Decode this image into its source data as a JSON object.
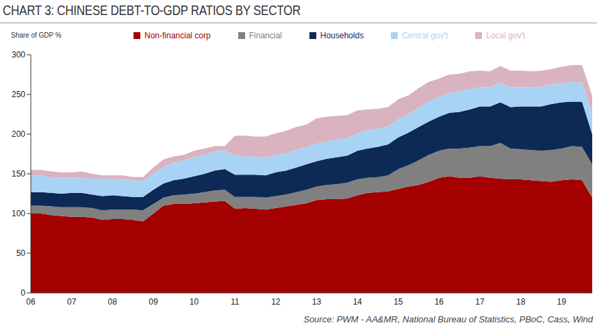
{
  "chart_data": {
    "type": "area",
    "title": "CHART 3: CHINESE DEBT-TO-GDP RATIOS BY SECTOR",
    "ylabel": "Share of GDP %",
    "note": "Source: PWM - AA&MR, National Bureau of Statistics, PBoC, Cass, Wind",
    "stacked": true,
    "legend": "top",
    "grid": false,
    "categories": [
      "06",
      null,
      null,
      null,
      "07",
      null,
      null,
      null,
      "08",
      null,
      null,
      null,
      "09",
      null,
      null,
      null,
      "10",
      null,
      null,
      null,
      "11",
      null,
      null,
      null,
      "12",
      null,
      null,
      null,
      "13",
      null,
      null,
      null,
      "14",
      null,
      null,
      null,
      "15",
      null,
      null,
      null,
      "16",
      null,
      null,
      null,
      "17",
      null,
      null,
      null,
      "18",
      null,
      null,
      null,
      "19",
      null,
      null,
      null
    ],
    "ylim": [
      0,
      300
    ],
    "yticks": [
      0,
      50,
      100,
      150,
      200,
      250,
      300
    ],
    "series": [
      {
        "name": "Non-financial corp",
        "color": "#a50000",
        "values": [
          100,
          100,
          98,
          97,
          96,
          96,
          95,
          92,
          93,
          93,
          92,
          90,
          100,
          110,
          112,
          112,
          113,
          114,
          115,
          116,
          106,
          107,
          106,
          105,
          107,
          109,
          111,
          113,
          117,
          118,
          118,
          119,
          123,
          126,
          127,
          128,
          131,
          134,
          136,
          140,
          145,
          147,
          145,
          145,
          147,
          145,
          144,
          143,
          143,
          142,
          141,
          140,
          142,
          143,
          142,
          120
        ]
      },
      {
        "name": "Financial",
        "color": "#808080",
        "values": [
          10,
          10,
          11,
          11,
          12,
          12,
          12,
          12,
          12,
          12,
          13,
          14,
          12,
          10,
          11,
          12,
          12,
          13,
          14,
          14,
          15,
          14,
          15,
          15,
          15,
          15,
          16,
          17,
          17,
          18,
          19,
          20,
          20,
          19,
          19,
          20,
          25,
          27,
          31,
          34,
          34,
          35,
          37,
          38,
          38,
          40,
          45,
          39,
          38,
          38,
          38,
          40,
          40,
          42,
          42,
          42
        ]
      },
      {
        "name": "Households",
        "color": "#0d2a57",
        "values": [
          17,
          17,
          17,
          17,
          18,
          18,
          17,
          18,
          18,
          17,
          16,
          17,
          18,
          18,
          19,
          20,
          22,
          23,
          25,
          26,
          28,
          28,
          28,
          28,
          30,
          30,
          31,
          32,
          32,
          33,
          34,
          34,
          36,
          37,
          38,
          39,
          40,
          41,
          42,
          42,
          43,
          45,
          46,
          48,
          50,
          50,
          51,
          52,
          54,
          55,
          56,
          58,
          58,
          56,
          57,
          38
        ]
      },
      {
        "name": "Central gov't",
        "color": "#a9d3f5",
        "values": [
          21,
          21,
          20,
          20,
          19,
          19,
          20,
          22,
          21,
          21,
          21,
          20,
          20,
          21,
          22,
          23,
          24,
          24,
          24,
          24,
          24,
          23,
          23,
          22,
          22,
          22,
          22,
          22,
          22,
          22,
          22,
          22,
          22,
          23,
          23,
          23,
          23,
          23,
          24,
          25,
          25,
          25,
          26,
          26,
          24,
          24,
          25,
          25,
          24,
          24,
          25,
          25,
          24,
          25,
          24,
          26
        ]
      },
      {
        "name": "Local gov't",
        "color": "#d9b3c0",
        "values": [
          7,
          7,
          7,
          7,
          7,
          8,
          6,
          4,
          4,
          5,
          4,
          5,
          8,
          9,
          8,
          7,
          8,
          8,
          7,
          5,
          25,
          26,
          25,
          27,
          27,
          28,
          29,
          28,
          32,
          31,
          30,
          29,
          29,
          26,
          25,
          24,
          25,
          24,
          25,
          25,
          23,
          23,
          22,
          22,
          21,
          20,
          21,
          21,
          21,
          20,
          20,
          19,
          21,
          21,
          22,
          22
        ]
      }
    ]
  }
}
